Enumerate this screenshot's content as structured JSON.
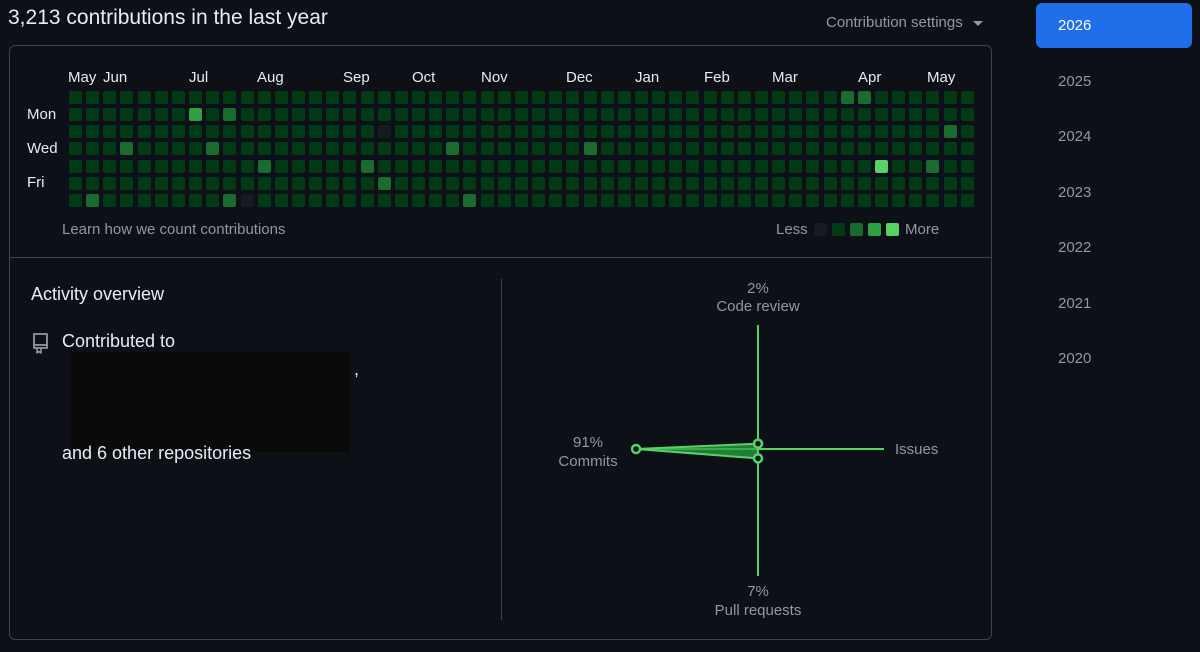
{
  "header": {
    "headline": "3,213 contributions in the last year",
    "settings_label": "Contribution settings"
  },
  "calendar": {
    "months": [
      "May",
      "Jun",
      "Jul",
      "Aug",
      "Sep",
      "Oct",
      "Nov",
      "Dec",
      "Jan",
      "Feb",
      "Mar",
      "Apr",
      "May"
    ],
    "days": [
      "Mon",
      "Wed",
      "Fri"
    ],
    "learn_link": "Learn how we count contributions",
    "legend_less": "Less",
    "legend_more": "More",
    "colors": [
      "#161b22",
      "#033a16",
      "#196c2e",
      "#2ea043",
      "#56d364"
    ],
    "weeks": 53,
    "levels": "1111111111111211111111112111111111111111111111111131111111121111211112111111011112111111111111111111111111111111111111111112111101121111111111111111111111111211111111121111111111111111111111111111111111111111111112111111111111111111111111111111111111111111111111111111111111111111111111111111111111111111111111111112111111211111111114111111111111111111112111121111111111111111111211111111111111111111111111111112111"
  },
  "overview": {
    "title": "Activity overview",
    "contributed_to": "Contributed to",
    "repos": [
      "",
      "",
      ""
    ],
    "repo_suffixes": [
      ",",
      ",",
      ""
    ],
    "others": "and 6 other repositories"
  },
  "radar": {
    "code_review_pct": "2%",
    "code_review_label": "Code review",
    "commits_pct": "91%",
    "commits_label": "Commits",
    "pull_requests_pct": "7%",
    "pull_requests_label": "Pull requests",
    "issues_label": "Issues",
    "values": {
      "commits": 91,
      "code_review": 2,
      "pull_requests": 7,
      "issues": 0
    },
    "accent": "#56d364"
  },
  "years": [
    "2026",
    "2025",
    "2024",
    "2023",
    "2022",
    "2021",
    "2020"
  ],
  "active_year": "2026"
}
